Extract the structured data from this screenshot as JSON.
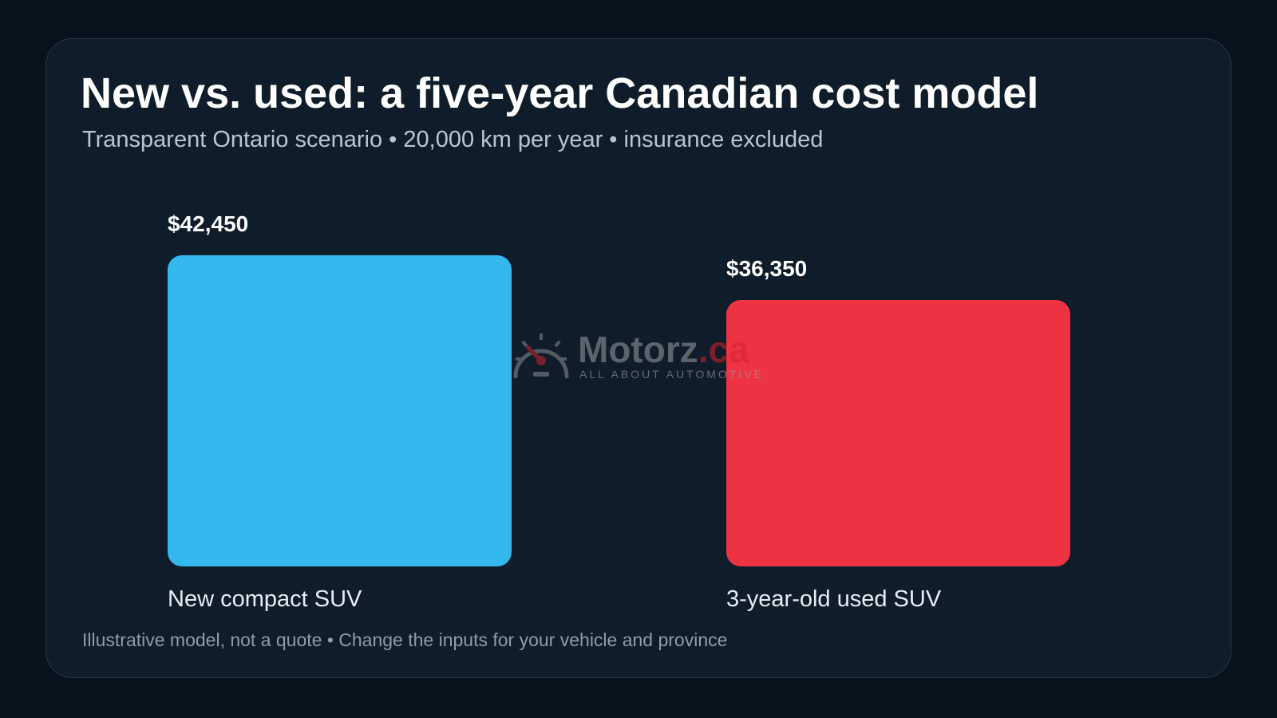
{
  "title": "New vs. used: a five-year Canadian cost model",
  "subtitle": "Transparent Ontario scenario • 20,000 km per year • insurance excluded",
  "footnote": "Illustrative model, not a quote • Change the inputs for your vehicle and province",
  "watermark": {
    "brand": "Motorz",
    "tld": ".ca",
    "tagline": "ALL ABOUT AUTOMOTIVE",
    "icon": "speedometer-icon"
  },
  "colors": {
    "background": "#07121c",
    "card": "#0f1c29",
    "new_bar": "#33b8ee",
    "used_bar": "#ee3342"
  },
  "chart_data": {
    "type": "bar",
    "categories": [
      "New compact SUV",
      "3-year-old used SUV"
    ],
    "values": [
      42450,
      36350
    ],
    "value_labels": [
      "$42,450",
      "$36,350"
    ],
    "colors": [
      "#33b8ee",
      "#ee3342"
    ],
    "title": "New vs. used: a five-year Canadian cost model",
    "xlabel": "",
    "ylabel": "",
    "grid": false,
    "legend": "none"
  }
}
